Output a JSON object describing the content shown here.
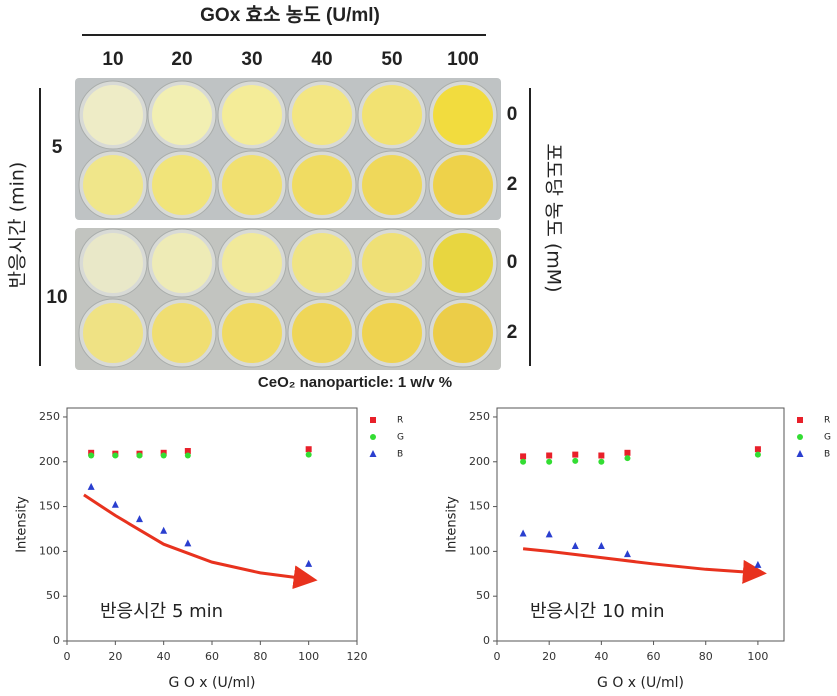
{
  "plate": {
    "title": "GOx 효소 농도 (U/ml)",
    "columns": [
      "10",
      "20",
      "30",
      "40",
      "50",
      "100"
    ],
    "time_axis": "반응시간 (min)",
    "times": [
      "5",
      "10"
    ],
    "glucose_axis": "포도당 농도 (mM)",
    "glucose": [
      "0",
      "2",
      "0",
      "2"
    ],
    "caption": "CeO₂ nanoparticle: 1 w/v %"
  },
  "chart_data": [
    {
      "type": "scatter",
      "annotation": "반응시간 5 min",
      "xlabel": "G O x (U/ml)",
      "ylabel": "Intensity",
      "x": [
        10,
        20,
        30,
        40,
        50,
        100
      ],
      "series": [
        {
          "name": "R",
          "color": "#e8202a",
          "marker": "square",
          "values": [
            210,
            209,
            209,
            210,
            212,
            214
          ]
        },
        {
          "name": "G",
          "color": "#33dd33",
          "marker": "circle",
          "values": [
            207,
            207,
            207,
            207,
            207,
            208
          ]
        },
        {
          "name": "B",
          "color": "#2a3fcf",
          "marker": "triangle",
          "values": [
            172,
            152,
            136,
            123,
            109,
            86
          ]
        }
      ],
      "fit": {
        "color": "#e8321e",
        "x": [
          7,
          20,
          40,
          60,
          80,
          100
        ],
        "values": [
          163,
          140,
          108,
          88,
          76,
          69
        ]
      },
      "xlim": [
        0,
        120
      ],
      "xticks": [
        0,
        20,
        40,
        60,
        80,
        100,
        120
      ],
      "ylim": [
        0,
        260
      ],
      "yticks": [
        0,
        50,
        100,
        150,
        200,
        250
      ]
    },
    {
      "type": "scatter",
      "annotation": "반응시간 10 min",
      "xlabel": "G O x (U/ml)",
      "ylabel": "Intensity",
      "x": [
        10,
        20,
        30,
        40,
        50,
        100
      ],
      "series": [
        {
          "name": "R",
          "color": "#e8202a",
          "marker": "square",
          "values": [
            206,
            207,
            208,
            207,
            210,
            214
          ]
        },
        {
          "name": "G",
          "color": "#33dd33",
          "marker": "circle",
          "values": [
            200,
            200,
            201,
            200,
            204,
            208
          ]
        },
        {
          "name": "B",
          "color": "#2a3fcf",
          "marker": "triangle",
          "values": [
            120,
            119,
            106,
            106,
            97,
            85
          ]
        }
      ],
      "fit": {
        "color": "#e8321e",
        "x": [
          10,
          20,
          40,
          60,
          80,
          100
        ],
        "values": [
          103,
          100,
          93,
          86,
          80,
          76
        ]
      },
      "xlim": [
        0,
        110
      ],
      "xticks": [
        0,
        20,
        40,
        60,
        80,
        100
      ],
      "ylim": [
        0,
        260
      ],
      "yticks": [
        0,
        50,
        100,
        150,
        200,
        250
      ]
    }
  ]
}
